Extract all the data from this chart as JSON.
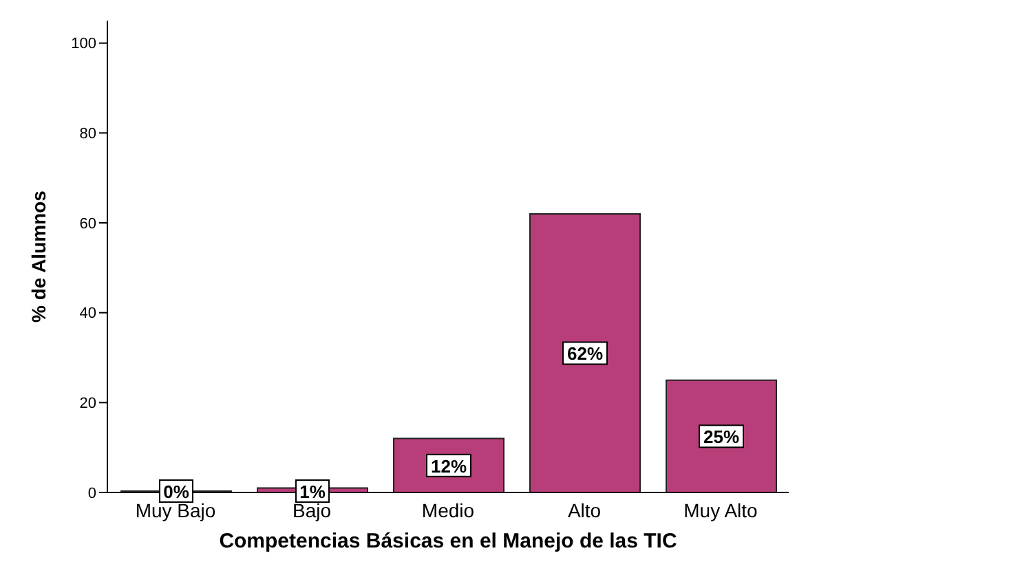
{
  "chart_data": {
    "type": "bar",
    "xlabel": "Competencias Básicas en el Manejo de las TIC",
    "ylabel": "% de Alumnos",
    "categories": [
      "Muy Bajo",
      "Bajo",
      "Medio",
      "Alto",
      "Muy Alto"
    ],
    "values": [
      0.3,
      1,
      12,
      62,
      25
    ],
    "value_labels": [
      "0%",
      "1%",
      "12%",
      "62%",
      "25%"
    ],
    "color": "#b83e79",
    "ylim": [
      0,
      105
    ],
    "yticks": [
      0,
      20,
      40,
      60,
      80,
      100
    ],
    "grid": false
  }
}
